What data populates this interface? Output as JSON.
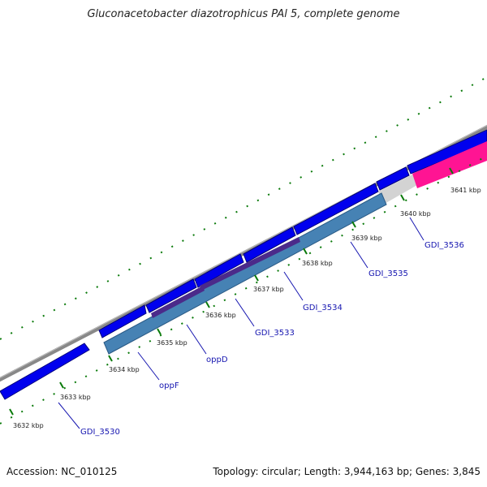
{
  "title": "Gluconacetobacter diazotrophicus PAl 5, complete genome",
  "footer": {
    "accession": "Accession: NC_010125",
    "summary": "Topology: circular; Length: 3,944,163 bp; Genes: 3,845"
  },
  "colors": {
    "backbone": "#888888",
    "cds": "#0000ee",
    "cds_edge": "#00007a",
    "rna": "#ff1493",
    "orf_light": "#4682b4",
    "orf_dark": "#4b2a8a",
    "gap": "#d3d3d3",
    "tick": "#0a7a0a",
    "label_line": "#1515b0"
  },
  "ticks": [
    "3632 kbp",
    "3633 kbp",
    "3634 kbp",
    "3635 kbp",
    "3636 kbp",
    "3637 kbp",
    "3638 kbp",
    "3639 kbp",
    "3640 kbp",
    "3641 kbp"
  ],
  "genes": [
    "GDI_3530",
    "oppF",
    "oppD",
    "GDI_3533",
    "GDI_3534",
    "GDI_3535",
    "GDI_3536"
  ]
}
